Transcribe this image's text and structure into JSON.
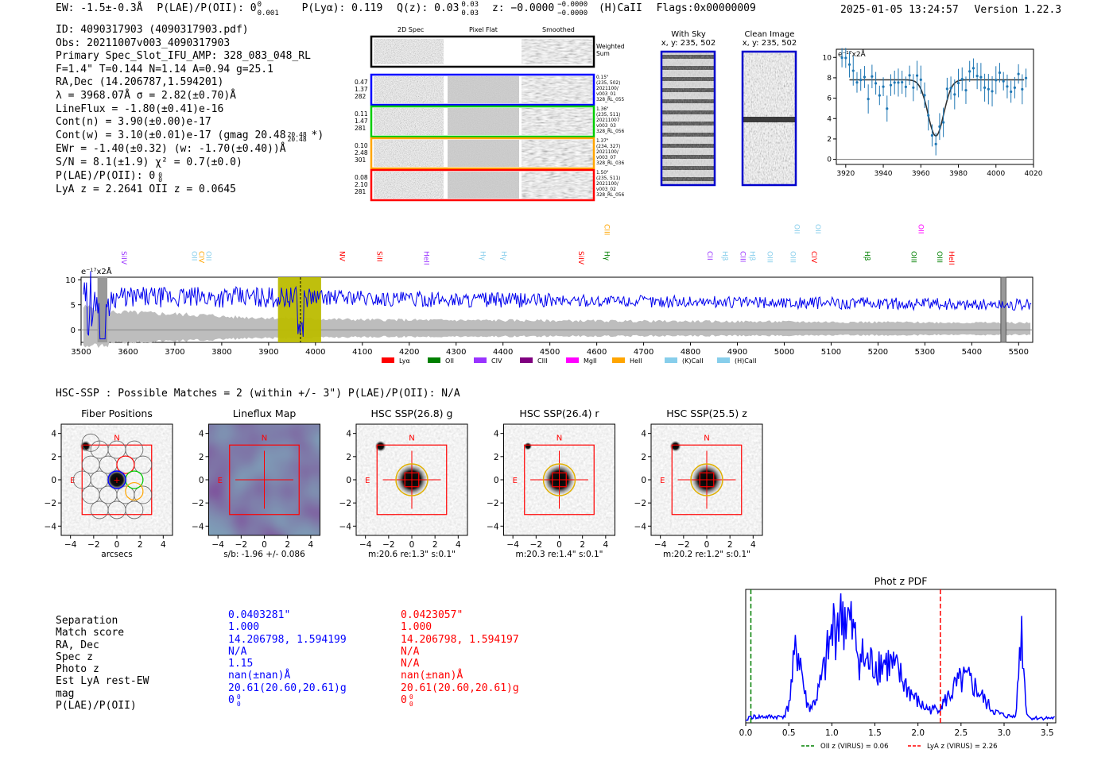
{
  "header": {
    "ew": "EW: -1.5±-0.3Å",
    "plae": "P(LAE)/P(OII): 0",
    "plae_sup": "0",
    "plae_sub": "0.001",
    "plya": "P(Lyα): 0.119",
    "qz": "Q(z): 0.03",
    "qz_sup": "0.03",
    "qz_sub": "0.03",
    "z": "z: −0.0000",
    "z_sup": "−0.0000",
    "z_sub": "−0.0000",
    "line": "(H)CaII",
    "flags": "Flags:0x00000009",
    "datetime": "2025-01-05 13:24:57",
    "version": "Version 1.22.3"
  },
  "info": {
    "id": "ID: 4090317903 (4090317903.pdf)",
    "obs": "Obs: 20211007v003_4090317903",
    "primary": "Primary Spec_Slot_IFU_AMP: 328_083_048_RL",
    "fibers": "F=1.4\"  T=0.144  N=1.14  A=0.94  g=25.1",
    "radec": "RA,Dec (14.206787,1.594201)",
    "lambda": "λ = 3968.07Å  σ = 2.82(±0.70)Å",
    "lineflux": "LineFlux = -1.80(±0.41)e-16",
    "contn": "Cont(n) = 3.90(±0.00)e-17",
    "contw": "Cont(w) = 3.10(±0.01)e-17 (gmag 20.48",
    "contw_sup": "20.48",
    "contw_sub": "20.48",
    "contw_end": " *)",
    "ewr": "EWr = -1.40(±0.32) (w: -1.70(±0.40))Å",
    "sn": "S/N = 8.1(±1.9)  χ² = 0.7(±0.0)",
    "plae": "P(LAE)/P(OII): 0",
    "plae_sup": "0",
    "plae_sub": "0",
    "z": "LyA z = 2.2641  OII z = 0.0645"
  },
  "cutouts": {
    "col_2d": "2D Spec",
    "col_flat": "Pixel Flat",
    "col_smooth": "Smoothed",
    "weighted": [
      "Weighted",
      "Sum"
    ],
    "rows": [
      {
        "left": [
          "0.47",
          "1.37",
          "282"
        ],
        "right": [
          "0.15\"",
          "(235, 502)",
          "2021100/",
          "v003_01",
          "328_RL_055"
        ],
        "color": "#0000ff"
      },
      {
        "left": [
          "0.11",
          "1.47",
          "281"
        ],
        "right": [
          "1.36\"",
          "(235, 511)",
          "20211007",
          "v003_03",
          "328_RL_056"
        ],
        "color": "#00cc00"
      },
      {
        "left": [
          "0.10",
          "2.48",
          "301"
        ],
        "right": [
          "1.37\"",
          "(234, 327)",
          "2021100/",
          "v003_07",
          "328_RL_036"
        ],
        "color": "#ffa500"
      },
      {
        "left": [
          "0.08",
          "2.10",
          "281"
        ],
        "right": [
          "1.50\"",
          "(235, 511)",
          "2021100/",
          "v003_02",
          "328_RL_056"
        ],
        "color": "#ff0000"
      }
    ]
  },
  "sky_panels": {
    "with_sky": "With Sky",
    "clean": "Clean Image",
    "coords": "x, y: 235, 502"
  },
  "line_fit": {
    "ylabel": "e⁻¹⁷x2Å",
    "xticks": [
      "3920",
      "3940",
      "3960",
      "3980",
      "4000",
      "4020"
    ],
    "yticks": [
      "0",
      "2",
      "4",
      "6",
      "8",
      "10"
    ],
    "xrange": [
      3915,
      4020
    ],
    "yrange": [
      -0.5,
      10.8
    ]
  },
  "spectrum": {
    "ylabel": "e⁻¹⁷x2Å",
    "xticks": [
      "3500",
      "3600",
      "3700",
      "3800",
      "3900",
      "4000",
      "4100",
      "4200",
      "4300",
      "4400",
      "4500",
      "4600",
      "4700",
      "4800",
      "4900",
      "5000",
      "5100",
      "5200",
      "5300",
      "5400",
      "5500"
    ],
    "yticks": [
      "0",
      "5",
      "10"
    ],
    "xrange": [
      3500,
      5530
    ],
    "yrange": [
      -2.5,
      10.5
    ],
    "lines": [
      {
        "name": "SiIV",
        "wave": 3580,
        "color": "#9933ff",
        "tier": 0
      },
      {
        "name": "OII",
        "wave": 3730,
        "color": "#87ceeb",
        "tier": 0
      },
      {
        "name": "CIV",
        "wave": 3745,
        "color": "#ffa500",
        "tier": 0
      },
      {
        "name": "OII",
        "wave": 3760,
        "color": "#87ceeb",
        "tier": 0
      },
      {
        "name": "NV",
        "wave": 4045,
        "color": "#ff0000",
        "tier": 0
      },
      {
        "name": "SiII",
        "wave": 4125,
        "color": "#ff0000",
        "tier": 0
      },
      {
        "name": "HeII",
        "wave": 4225,
        "color": "#9933ff",
        "tier": 0
      },
      {
        "name": "Hγ",
        "wave": 4345,
        "color": "#87ceeb",
        "tier": 0
      },
      {
        "name": "Hγ",
        "wave": 4390,
        "color": "#87ceeb",
        "tier": 0
      },
      {
        "name": "SiIV",
        "wave": 4555,
        "color": "#ff0000",
        "tier": 0
      },
      {
        "name": "Hγ",
        "wave": 4610,
        "color": "#008000",
        "tier": 0
      },
      {
        "name": "CIII",
        "wave": 4610,
        "color": "#ffa500",
        "tier": 1
      },
      {
        "name": "CII",
        "wave": 4830,
        "color": "#9933ff",
        "tier": 0
      },
      {
        "name": "Hβ",
        "wave": 4862,
        "color": "#87ceeb",
        "tier": 0
      },
      {
        "name": "CIII",
        "wave": 4900,
        "color": "#9933ff",
        "tier": 0
      },
      {
        "name": "Hβ",
        "wave": 4920,
        "color": "#87ceeb",
        "tier": 0
      },
      {
        "name": "OIII",
        "wave": 4958,
        "color": "#87ceeb",
        "tier": 0
      },
      {
        "name": "OIII",
        "wave": 5007,
        "color": "#87ceeb",
        "tier": 0
      },
      {
        "name": "OII",
        "wave": 5015,
        "color": "#87ceeb",
        "tier": 1
      },
      {
        "name": "CIV",
        "wave": 5052,
        "color": "#ff0000",
        "tier": 0
      },
      {
        "name": "OII",
        "wave": 5060,
        "color": "#87ceeb",
        "tier": 1
      },
      {
        "name": "Hβ",
        "wave": 5165,
        "color": "#008000",
        "tier": 0
      },
      {
        "name": "OIII",
        "wave": 5265,
        "color": "#008000",
        "tier": 0
      },
      {
        "name": "OII",
        "wave": 5280,
        "color": "#ff00ff",
        "tier": 1
      },
      {
        "name": "OIII",
        "wave": 5320,
        "color": "#008000",
        "tier": 0
      },
      {
        "name": "HeII",
        "wave": 5345,
        "color": "#ff0000",
        "tier": 0
      }
    ],
    "legend": [
      {
        "name": "Lyα",
        "color": "#ff0000"
      },
      {
        "name": "OII",
        "color": "#008000"
      },
      {
        "name": "CIV",
        "color": "#9933ff"
      },
      {
        "name": "CIII",
        "color": "#800080"
      },
      {
        "name": "MgII",
        "color": "#ff00ff"
      },
      {
        "name": "HeII",
        "color": "#ffa500"
      },
      {
        "name": "(K)CaII",
        "color": "#87ceeb"
      },
      {
        "name": "(H)CaII",
        "color": "#87ceeb"
      }
    ]
  },
  "hsc": {
    "title": "HSC-SSP : Possible Matches = 2 (within +/- 3\")  P(LAE)/P(OII): N/A",
    "panels": [
      {
        "title": "Fiber Positions",
        "caption": "arcsecs"
      },
      {
        "title": "Lineflux Map",
        "caption": "s/b: -1.96 +/- 0.086"
      },
      {
        "title": "HSC SSP(26.8) g",
        "caption": "m:20.6  re:1.3\"  s:0.1\""
      },
      {
        "title": "HSC SSP(26.4) r",
        "caption": "m:20.3  re:1.4\"  s:0.1\""
      },
      {
        "title": "HSC SSP(25.5) z",
        "caption": "m:20.2  re:1.2\"  s:0.1\""
      }
    ],
    "ticks": [
      "−4",
      "−2",
      "0",
      "2",
      "4"
    ],
    "north": "N",
    "east": "E"
  },
  "matches": {
    "labels": [
      "Separation",
      "Match score",
      "RA, Dec",
      "Spec z",
      "Photo z",
      "Est LyA rest-EW",
      "mag",
      "P(LAE)/P(OII)"
    ],
    "col1": [
      "0.0403281\"",
      "1.000",
      "14.206798, 1.594199",
      "N/A",
      "1.15",
      "nan(±nan)Å",
      "20.61(20.60,20.61)g",
      "0"
    ],
    "col2": [
      "0.0423057\"",
      "1.000",
      "14.206798, 1.594197",
      "N/A",
      "N/A",
      "nan(±nan)Å",
      "20.61(20.60,20.61)g",
      "0"
    ],
    "col1_color": "#0000ff",
    "col2_color": "#ff0000",
    "plae_sup": "0",
    "plae_sub": "0"
  },
  "photz": {
    "title": "Phot z PDF",
    "xticks": [
      "0.0",
      "0.5",
      "1.0",
      "1.5",
      "2.0",
      "2.5",
      "3.0",
      "3.5"
    ],
    "xrange": [
      0,
      3.6
    ],
    "oii_z": 0.06,
    "lya_z": 2.26,
    "legend_oii": "OII z (VIRUS) = 0.06",
    "legend_lya": "LyA z (VIRUS) = 2.26"
  }
}
